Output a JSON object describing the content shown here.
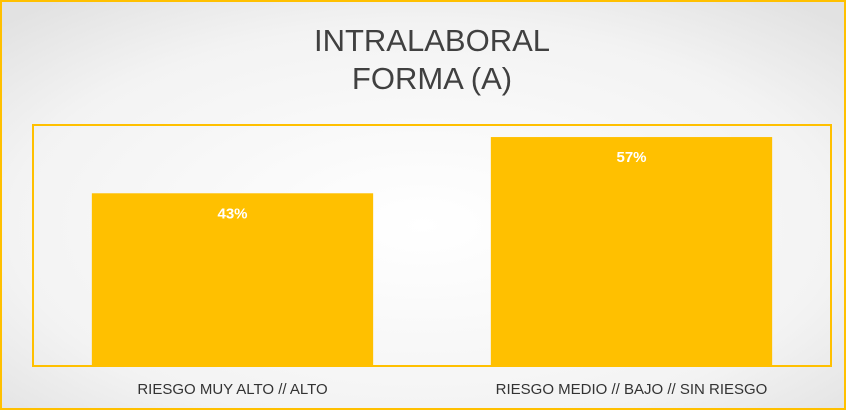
{
  "chart_data": {
    "type": "bar",
    "title": [
      "INTRALABORAL",
      "FORMA (A)"
    ],
    "categories": [
      "RIESGO MUY ALTO // ALTO",
      "RIESGO MEDIO // BAJO // SIN RIESGO"
    ],
    "values": [
      43,
      57
    ],
    "value_labels": [
      "43%",
      "57%"
    ],
    "color": "#ffc000",
    "ylim": [
      0,
      60
    ]
  }
}
